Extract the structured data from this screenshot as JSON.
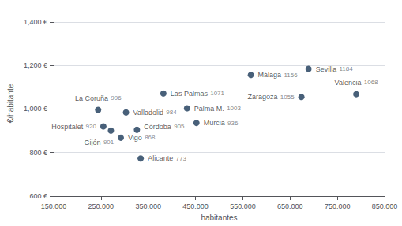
{
  "chart_data": {
    "type": "scatter",
    "xlabel": "habitantes",
    "ylabel": "€/habitante",
    "names": [
      "La Coruña",
      "Hospitalet",
      "Gijón",
      "Valladolid",
      "Vigo",
      "Córdoba",
      "Las Palmas",
      "Palma M.",
      "Murcia",
      "Málaga",
      "Sevilla",
      "Zaragoza",
      "Valencia",
      "Alicante"
    ],
    "x": [
      244000,
      255000,
      271000,
      303000,
      292000,
      326000,
      382000,
      432000,
      452000,
      567000,
      689000,
      674000,
      790000,
      334000
    ],
    "values": [
      996,
      920,
      901,
      984,
      868,
      905,
      1071,
      1003,
      936,
      1156,
      1184,
      1055,
      1068,
      773
    ],
    "data_labels": true,
    "color": "#1a3858",
    "grid": true,
    "xlim": [
      150000,
      850000
    ],
    "ylim": [
      600,
      1450
    ],
    "xticks": [
      {
        "value": 150000,
        "label": "150.000"
      },
      {
        "value": 250000,
        "label": "250.000"
      },
      {
        "value": 350000,
        "label": "350.000"
      },
      {
        "value": 450000,
        "label": "450.000"
      },
      {
        "value": 550000,
        "label": "550.000"
      },
      {
        "value": 650000,
        "label": "650.000"
      },
      {
        "value": 750000,
        "label": "750.000"
      },
      {
        "value": 850000,
        "label": "850.000"
      }
    ],
    "yticks": [
      {
        "value": 600,
        "label": "600 €"
      },
      {
        "value": 800,
        "label": "800 €"
      },
      {
        "value": 1000,
        "label": "1,000 €"
      },
      {
        "value": 1200,
        "label": "1,200 €"
      },
      {
        "value": 1400,
        "label": "1,400 €"
      }
    ]
  }
}
